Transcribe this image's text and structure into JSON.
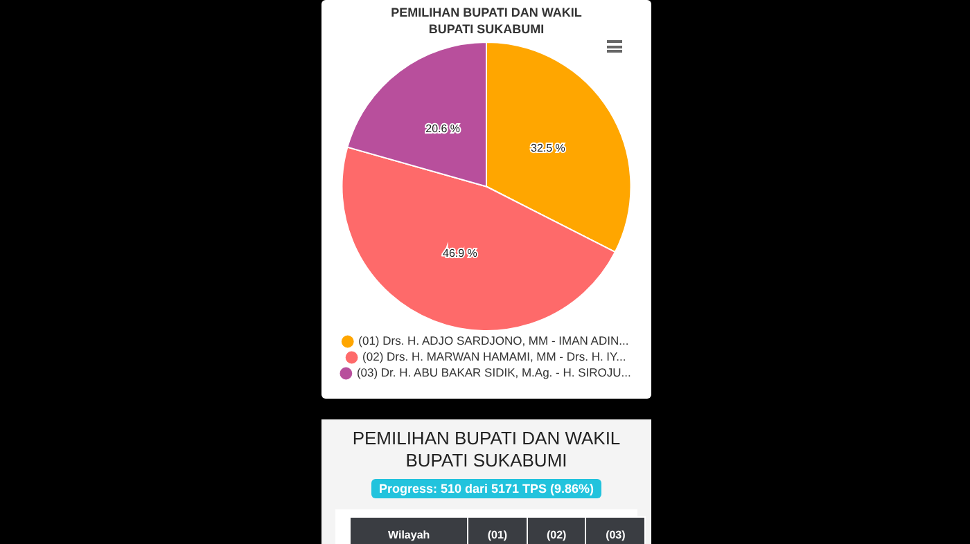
{
  "chart_data": {
    "type": "pie",
    "title": "PEMILIHAN BUPATI DAN WAKIL BUPATI SUKABUMI",
    "categories": [
      "(01) Drs. H. ADJO SARDJONO, MM - IMAN ADIN...",
      "(02) Drs. H. MARWAN HAMAMI, MM - Drs. H. IY...",
      "(03) Dr. H. ABU BAKAR SIDIK, M.Ag. - H. SIROJU..."
    ],
    "values": [
      32.5,
      46.9,
      20.6
    ],
    "colors": [
      "#ffa600",
      "#fe6a6a",
      "#b84f9c"
    ],
    "value_labels": [
      "32.5 %",
      "46.9 %",
      "20.6 %"
    ],
    "legend": "bottom",
    "annotations": [
      "PEMILIHAN BUPATI DAN WAKIL BUPATI SUKABUMI",
      "Progress: 510 dari 5171 TPS (9.86%)",
      "Wilayah",
      "(01)",
      "(02)",
      "(03)"
    ]
  }
}
